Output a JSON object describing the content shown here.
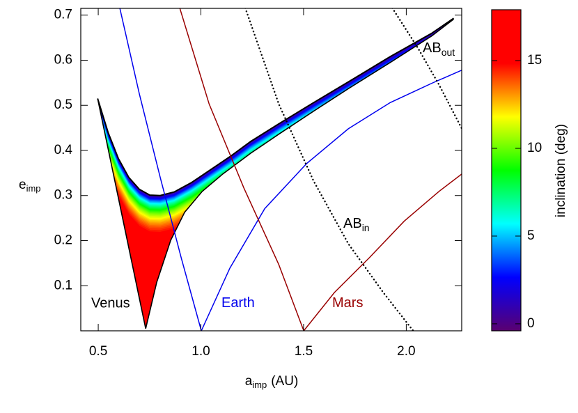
{
  "chart_data": {
    "type": "line",
    "x_label": {
      "main": "a",
      "sub": "imp",
      "rest": "(AU)"
    },
    "y_label": {
      "main": "e",
      "sub": "imp"
    },
    "xlim": [
      0.415,
      2.27
    ],
    "ylim": [
      0,
      0.715
    ],
    "xticks": [
      {
        "value": 0.5,
        "label": "0.5"
      },
      {
        "value": 1,
        "label": "1.0"
      },
      {
        "value": 1.5,
        "label": "1.5"
      },
      {
        "value": 2,
        "label": "2.0"
      }
    ],
    "yticks": [
      0.1,
      0.2,
      0.3,
      0.4,
      0.5,
      0.6,
      0.7
    ],
    "region": {
      "name": "Venus",
      "color": "#000000",
      "x_upper": [
        0.497,
        0.548,
        0.598,
        0.649,
        0.7,
        0.751,
        0.802,
        0.87,
        0.955,
        1.04,
        1.141,
        1.243,
        1.379,
        1.549,
        1.718,
        1.922,
        2.125,
        2.231
      ],
      "upper": [
        0.515,
        0.44,
        0.382,
        0.34,
        0.314,
        0.301,
        0.3,
        0.308,
        0.329,
        0.355,
        0.386,
        0.42,
        0.459,
        0.506,
        0.552,
        0.608,
        0.66,
        0.693
      ],
      "x_lower": [
        0.731,
        0.785,
        0.853,
        0.921,
        1.006,
        1.107,
        1.243,
        1.379,
        1.549,
        1.718,
        1.922,
        2.125,
        2.231
      ],
      "lower": [
        0.005,
        0.108,
        0.201,
        0.263,
        0.309,
        0.348,
        0.394,
        0.436,
        0.487,
        0.537,
        0.595,
        0.654,
        0.691
      ]
    },
    "series": [
      {
        "name": "Earth",
        "color": "#0000ee",
        "dashed": false,
        "x": [
          0.605,
          0.7,
          0.802,
          0.904,
          1.002,
          1.141,
          1.311,
          1.515,
          1.718,
          1.922,
          2.125,
          2.271
        ],
        "values": [
          0.716,
          0.526,
          0.34,
          0.162,
          0,
          0.139,
          0.271,
          0.371,
          0.448,
          0.506,
          0.549,
          0.578
        ]
      },
      {
        "name": "Mars",
        "color": "#990000",
        "dashed": false,
        "x": [
          0.897,
          1.04,
          1.209,
          1.379,
          1.501,
          1.65,
          1.82,
          1.99,
          2.159,
          2.271
        ],
        "values": [
          0.716,
          0.503,
          0.317,
          0.147,
          0,
          0.085,
          0.162,
          0.243,
          0.309,
          0.348
        ]
      },
      {
        "name": "AB",
        "subscript": "in",
        "color": "#000000",
        "dashed": true,
        "x": [
          1.216,
          1.379,
          1.549,
          1.718,
          1.888,
          2.034
        ],
        "values": [
          0.716,
          0.503,
          0.332,
          0.193,
          0.085,
          0
        ]
      },
      {
        "name": "AB",
        "subscript": "out",
        "color": "#000000",
        "dashed": true,
        "x": [
          1.932,
          2.058,
          2.159,
          2.271
        ],
        "values": [
          0.716,
          0.626,
          0.546,
          0.448
        ]
      }
    ],
    "colorbar": {
      "label": "inclination (deg)",
      "lim": [
        -0.4,
        17.9
      ],
      "ticks": [
        0,
        5,
        10,
        15
      ],
      "colors": [
        "#5a0070",
        "#0000ff",
        "#00ffff",
        "#00ff00",
        "#ffff00",
        "#ff0000",
        "#ff0000"
      ]
    }
  }
}
